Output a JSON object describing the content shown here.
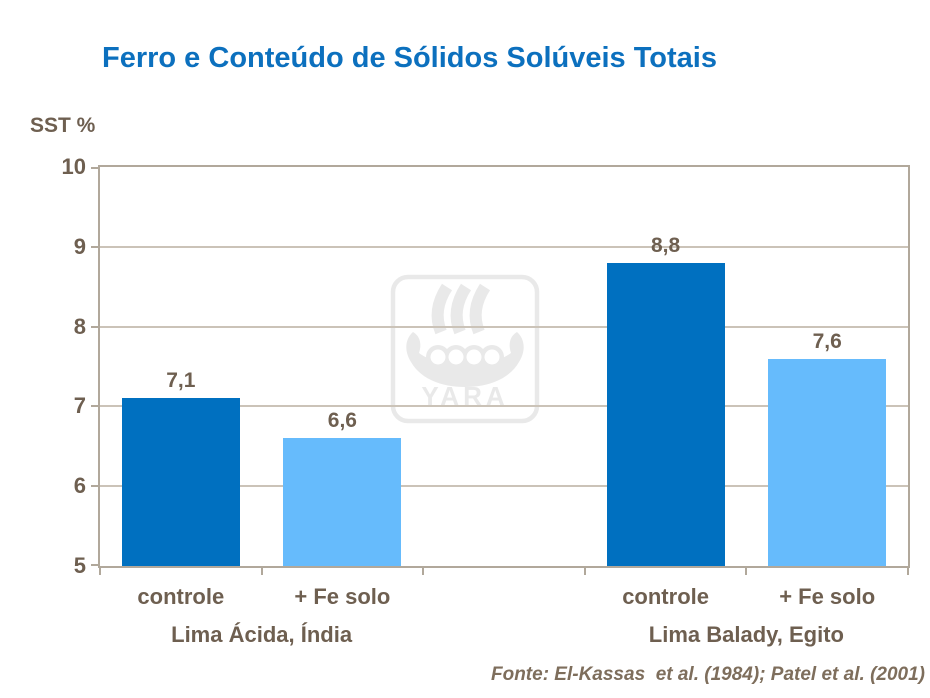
{
  "slide": {
    "title": "Ferro e Conteúdo de Sólidos Solúveis Totais",
    "source": "Fonte: El-Kassas  et al. (1984); Patel et al. (2001)"
  },
  "watermark": {
    "name": "yara-viking-ship-logo",
    "text": "YARA"
  },
  "colors": {
    "title": "#0C70BE",
    "text": "#6E5F50",
    "source_text": "#7E6E5C",
    "gridline": "#CBC3B8",
    "plot_border": "#B1A89B",
    "bar_primary": "#0070C0",
    "bar_secondary": "#66BBFC",
    "watermark": "#E9E9E9"
  },
  "chart_data": {
    "type": "bar",
    "title": "Ferro e Conteúdo de Sólidos Solúveis Totais",
    "xlabel": "",
    "ylabel": "SST %",
    "ylim": [
      5,
      10
    ],
    "yticks": [
      10,
      9,
      8,
      7,
      6,
      5
    ],
    "grid": true,
    "legend": "none",
    "groups": [
      {
        "label": "Lima Ácida, Índia",
        "bars": [
          {
            "category": "controle",
            "value": 7.1,
            "value_label": "7,1",
            "color": "#0070C0"
          },
          {
            "category": "+ Fe solo",
            "value": 6.6,
            "value_label": "6,6",
            "color": "#66BBFC"
          }
        ]
      },
      {
        "label": "Lima Balady, Egito",
        "bars": [
          {
            "category": "controle",
            "value": 8.8,
            "value_label": "8,8",
            "color": "#0070C0"
          },
          {
            "category": "+ Fe solo",
            "value": 7.6,
            "value_label": "7,6",
            "color": "#66BBFC"
          }
        ]
      }
    ]
  }
}
